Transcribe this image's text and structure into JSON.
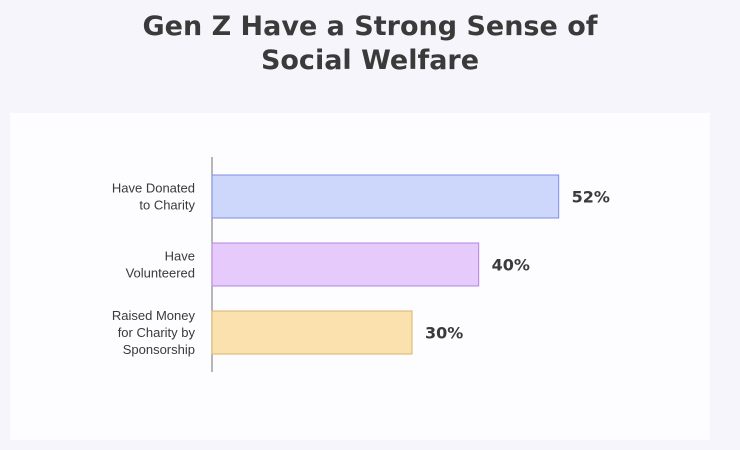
{
  "chart_data": {
    "type": "bar",
    "orientation": "horizontal",
    "title": [
      "Gen Z Have a Strong Sense of",
      "Social Welfare"
    ],
    "categories": [
      [
        "Have Donated",
        "to Charity"
      ],
      [
        "Have",
        "Volunteered"
      ],
      [
        "Raised Money",
        "for Charity by",
        "Sponsorship"
      ]
    ],
    "values": [
      52,
      40,
      30
    ],
    "value_labels": [
      "52%",
      "40%",
      "30%"
    ],
    "xlim": [
      0,
      75
    ],
    "grid": false,
    "legend": "none",
    "colors": {
      "fills": [
        "#cdd6fb",
        "#e5cafb",
        "#fbe1ae"
      ],
      "strokes": [
        "#7f8ee6",
        "#b186e0",
        "#d8b56c"
      ],
      "axis": "#888888",
      "text": "#3a3a3a",
      "background": "#f6f5fb",
      "panel": "#fdfcfe"
    }
  }
}
